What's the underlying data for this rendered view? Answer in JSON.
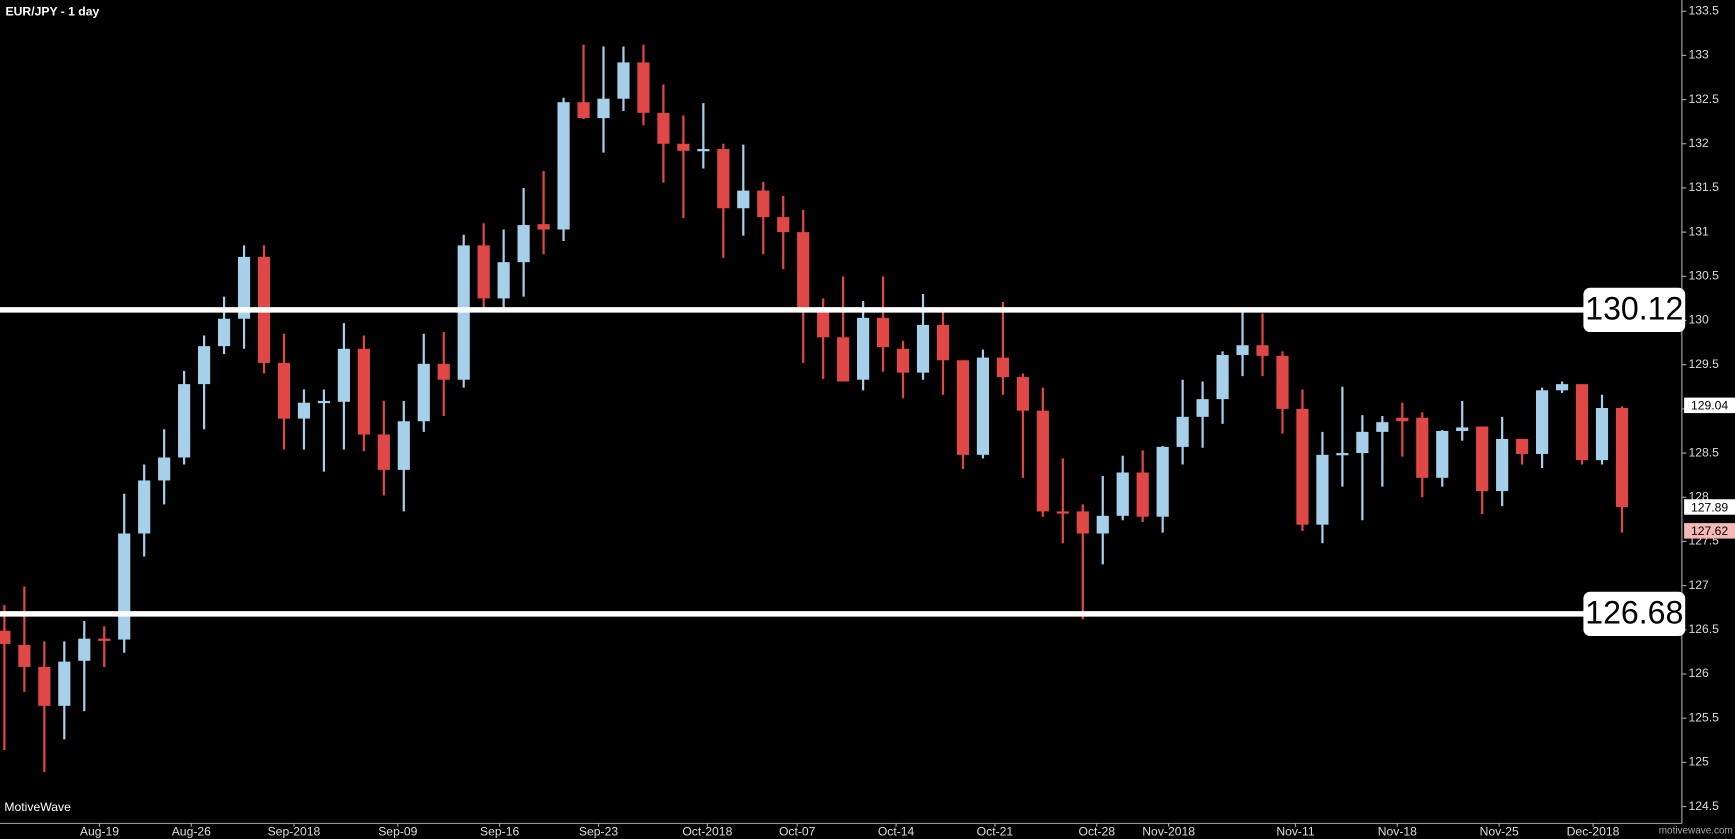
{
  "chart_data": {
    "type": "candlestick",
    "title": "EUR/JPY - 1 day",
    "watermark": "MotiveWave",
    "credit": "motivewave.com",
    "up_color": "#a6d0ea",
    "down_color": "#e04848",
    "categories": [
      null,
      null,
      null,
      null,
      null,
      null,
      null,
      null,
      null,
      null,
      null,
      null,
      null,
      null,
      null,
      null,
      null,
      null,
      null,
      null,
      null,
      null,
      null,
      null,
      null,
      null,
      null,
      null,
      null,
      null,
      null,
      null,
      null,
      null,
      null,
      null,
      null,
      null,
      null,
      null,
      null,
      null,
      null,
      null,
      null,
      null,
      null,
      null,
      null,
      null,
      null,
      null,
      null,
      null,
      null,
      null,
      null,
      null,
      null,
      null,
      null,
      null,
      null,
      null,
      null,
      null,
      null,
      null,
      null,
      null,
      null,
      null,
      null,
      null,
      null,
      null,
      null,
      null,
      null,
      null,
      null,
      null
    ],
    "open": [
      126.49,
      126.33,
      126.08,
      125.64,
      126.15,
      126.4,
      126.39,
      127.59,
      128.19,
      128.45,
      129.28,
      129.71,
      130.02,
      130.72,
      129.52,
      128.89,
      129.08,
      129.08,
      129.68,
      128.71,
      128.31,
      128.86,
      129.51,
      129.33,
      130.85,
      130.25,
      130.66,
      131.09,
      131.03,
      132.47,
      132.29,
      132.51,
      132.92,
      132.35,
      132.0,
      131.93,
      131.94,
      131.27,
      131.47,
      131.17,
      131.0,
      130.15,
      129.81,
      129.33,
      130.03,
      129.68,
      129.41,
      129.95,
      129.55,
      128.48,
      129.58,
      129.36,
      128.98,
      127.84,
      127.84,
      127.59,
      127.79,
      128.28,
      127.78,
      128.57,
      128.91,
      129.11,
      129.61,
      129.72,
      129.6,
      129.0,
      127.69,
      128.48,
      128.5,
      128.74,
      128.9,
      128.9,
      128.22,
      128.75,
      128.8,
      128.07,
      128.66,
      128.49,
      129.21,
      129.28,
      128.42,
      129.01
    ],
    "high": [
      126.78,
      126.99,
      126.37,
      126.37,
      126.6,
      126.54,
      128.04,
      128.37,
      128.77,
      129.43,
      129.83,
      130.27,
      130.85,
      130.85,
      129.85,
      129.22,
      129.22,
      129.97,
      129.83,
      129.09,
      129.09,
      129.85,
      129.87,
      130.97,
      131.1,
      131.03,
      131.5,
      131.69,
      132.52,
      133.12,
      133.1,
      133.1,
      133.12,
      132.67,
      132.32,
      132.46,
      132.0,
      131.99,
      131.57,
      131.41,
      131.25,
      130.25,
      130.5,
      130.22,
      130.5,
      129.77,
      130.3,
      130.12,
      129.55,
      129.67,
      130.21,
      129.4,
      129.24,
      128.44,
      127.92,
      128.24,
      128.47,
      128.53,
      128.58,
      129.33,
      129.31,
      129.65,
      130.12,
      130.08,
      129.65,
      129.22,
      128.74,
      129.25,
      128.93,
      128.92,
      129.07,
      128.96,
      128.76,
      129.09,
      128.8,
      128.91,
      128.66,
      129.24,
      129.31,
      129.28,
      129.16,
      129.03
    ],
    "low": [
      125.14,
      125.8,
      124.89,
      125.26,
      125.58,
      126.08,
      126.24,
      127.33,
      127.92,
      128.37,
      128.77,
      129.62,
      129.68,
      129.4,
      128.54,
      128.54,
      128.29,
      128.54,
      128.52,
      128.02,
      127.84,
      128.74,
      128.92,
      129.24,
      130.1,
      130.12,
      130.27,
      130.75,
      130.9,
      132.28,
      131.9,
      132.37,
      132.21,
      131.56,
      131.16,
      131.72,
      130.71,
      130.96,
      130.75,
      130.58,
      129.52,
      129.34,
      129.31,
      129.21,
      129.42,
      129.12,
      129.33,
      129.16,
      128.32,
      128.44,
      129.16,
      128.22,
      127.78,
      127.48,
      126.62,
      127.24,
      127.74,
      127.72,
      127.6,
      128.37,
      128.56,
      128.83,
      129.37,
      129.37,
      128.72,
      127.62,
      127.48,
      128.12,
      127.74,
      128.12,
      128.46,
      128.0,
      128.12,
      128.64,
      127.81,
      127.9,
      128.37,
      128.33,
      129.18,
      128.37,
      128.37,
      127.6
    ],
    "close": [
      126.34,
      126.08,
      125.64,
      126.14,
      126.4,
      126.38,
      127.59,
      128.19,
      128.45,
      129.28,
      129.71,
      130.02,
      130.72,
      129.52,
      128.89,
      129.07,
      129.09,
      129.68,
      128.71,
      128.31,
      128.86,
      129.51,
      129.33,
      130.85,
      130.25,
      130.66,
      131.08,
      131.03,
      132.47,
      132.29,
      132.51,
      132.92,
      132.35,
      132.0,
      131.92,
      131.94,
      131.27,
      131.47,
      131.17,
      131.0,
      130.15,
      129.81,
      129.31,
      130.03,
      129.7,
      129.41,
      129.95,
      129.55,
      128.48,
      129.58,
      129.36,
      128.98,
      127.84,
      127.83,
      127.59,
      127.79,
      128.28,
      127.78,
      128.57,
      128.91,
      129.11,
      129.61,
      129.72,
      129.6,
      129.0,
      127.69,
      128.48,
      128.5,
      128.74,
      128.85,
      128.86,
      128.22,
      128.75,
      128.79,
      128.07,
      128.66,
      128.49,
      129.21,
      129.28,
      128.42,
      129.01,
      127.89
    ],
    "xlim": [
      -0.22,
      84
    ],
    "xticks": [
      {
        "value": 4.76,
        "label": "Aug-19"
      },
      {
        "value": 9.36,
        "label": "Aug-26"
      },
      {
        "value": 14.5,
        "label": "Sep-2018"
      },
      {
        "value": 19.7,
        "label": "Sep-09"
      },
      {
        "value": 24.8,
        "label": "Sep-16"
      },
      {
        "value": 29.75,
        "label": "Sep-23"
      },
      {
        "value": 35.2,
        "label": "Oct-2018"
      },
      {
        "value": 39.7,
        "label": "Oct-07"
      },
      {
        "value": 44.65,
        "label": "Oct-14"
      },
      {
        "value": 49.6,
        "label": "Oct-21"
      },
      {
        "value": 54.7,
        "label": "Oct-28"
      },
      {
        "value": 58.3,
        "label": "Nov-2018"
      },
      {
        "value": 64.65,
        "label": "Nov-11"
      },
      {
        "value": 69.75,
        "label": "Nov-18"
      },
      {
        "value": 74.85,
        "label": "Nov-25"
      },
      {
        "value": 79.55,
        "label": "Dec-2018"
      }
    ],
    "ylim": [
      124.31,
      133.625
    ],
    "yticks": [
      124.5,
      125,
      125.5,
      126,
      126.5,
      127,
      127.5,
      128,
      128.5,
      129,
      129.5,
      130,
      130.5,
      131,
      131.5,
      132,
      132.5,
      133,
      133.5
    ],
    "hlines": [
      130.12,
      126.68
    ],
    "price_tags": [
      {
        "value": 129.04,
        "color": "#ffffff"
      },
      {
        "value": 127.89,
        "color": "#ffffff"
      },
      {
        "value": 127.62,
        "color": "#f4b8b8"
      }
    ]
  }
}
